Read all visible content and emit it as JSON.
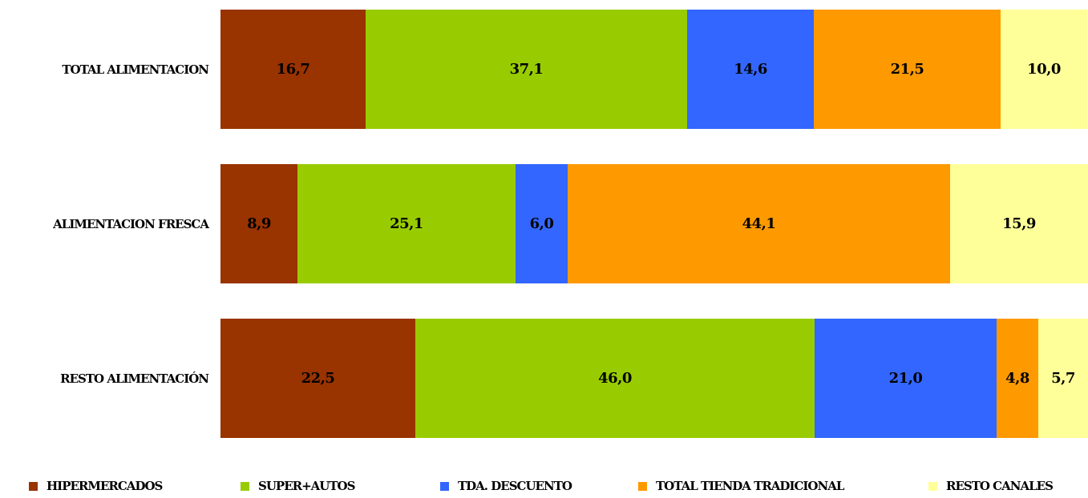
{
  "chart_data": {
    "type": "bar",
    "orientation": "horizontal",
    "stacked": true,
    "categories": [
      "TOTAL ALIMENTACION",
      "ALIMENTACION FRESCA",
      "RESTO ALIMENTACIÓN"
    ],
    "series": [
      {
        "name": "HIPERMERCADOS",
        "color": "#993300",
        "values": [
          16.7,
          8.9,
          22.5
        ],
        "labels": [
          "16,7",
          "8,9",
          "22,5"
        ]
      },
      {
        "name": "SUPER+AUTOS",
        "color": "#99cc00",
        "values": [
          37.1,
          25.1,
          46.0
        ],
        "labels": [
          "37,1",
          "25,1",
          "46,0"
        ]
      },
      {
        "name": "TDA. DESCUENTO",
        "color": "#3366ff",
        "values": [
          14.6,
          6.0,
          21.0
        ],
        "labels": [
          "14,6",
          "6,0",
          "21,0"
        ]
      },
      {
        "name": "TOTAL TIENDA TRADICIONAL",
        "color": "#ff9900",
        "values": [
          21.5,
          44.1,
          4.8
        ],
        "labels": [
          "21,5",
          "44,1",
          "4,8"
        ]
      },
      {
        "name": "RESTO CANALES",
        "color": "#ffff99",
        "values": [
          10.0,
          15.9,
          5.7
        ],
        "labels": [
          "10,0",
          "15,9",
          "5,7"
        ]
      }
    ],
    "xlim": [
      0,
      100
    ],
    "legend": "bottom",
    "grid": false
  }
}
